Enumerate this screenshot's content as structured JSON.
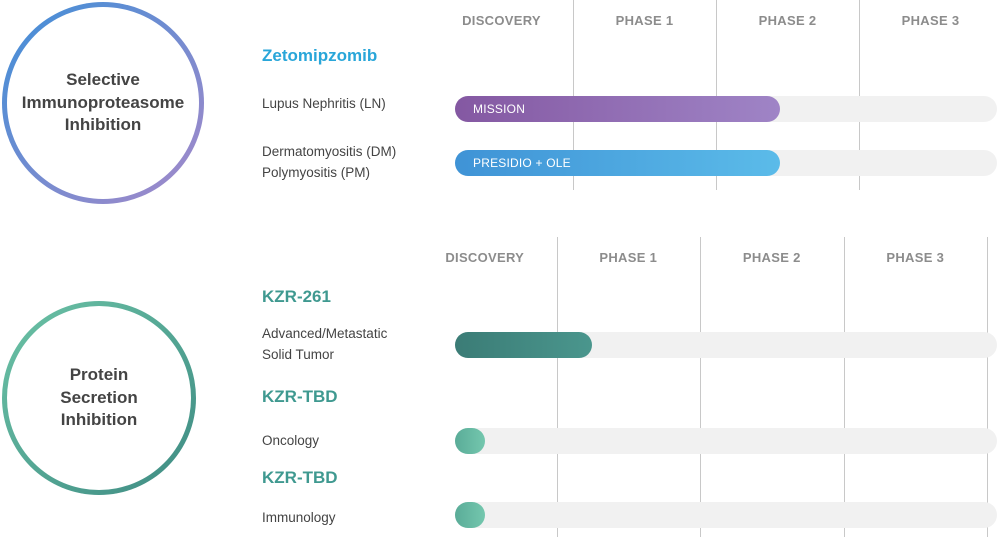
{
  "chart_data": [
    {
      "type": "bar",
      "orientation": "horizontal",
      "platform": "Selective\nImmunoproteasome\nInhibition",
      "platform_colors": [
        "#3f8fd8",
        "#a689c9"
      ],
      "categories": [
        "DISCOVERY",
        "PHASE 1",
        "PHASE 2",
        "PHASE 3"
      ],
      "xlim": [
        0,
        4
      ],
      "grid": true,
      "groups": [
        {
          "drug": "Zetomipzomib",
          "drug_color": "#29a6d9",
          "programs": [
            {
              "indication": "Lupus Nephritis (LN)",
              "label": "MISSION",
              "value": 2.45,
              "colors": [
                "#8458a2",
                "#9f84c6"
              ]
            },
            {
              "indication": "Dermatomyositis (DM)\nPolymyositis (PM)",
              "label": "PRESIDIO + OLE",
              "value": 2.45,
              "colors": [
                "#3f93d6",
                "#5bbbe9"
              ]
            }
          ]
        }
      ]
    },
    {
      "type": "bar",
      "orientation": "horizontal",
      "platform": "Protein\nSecretion\nInhibition",
      "platform_colors": [
        "#6cc3a6",
        "#3e8b83"
      ],
      "categories": [
        "DISCOVERY",
        "PHASE 1",
        "PHASE 2",
        "PHASE 3"
      ],
      "xlim": [
        0,
        4
      ],
      "grid": true,
      "groups": [
        {
          "drug": "KZR-261",
          "drug_color": "#3f9990",
          "programs": [
            {
              "indication": "Advanced/Metastatic\nSolid Tumor",
              "label": "",
              "value": 1.25,
              "colors": [
                "#3b7c76",
                "#4a968d"
              ]
            }
          ]
        },
        {
          "drug": "KZR-TBD",
          "drug_color": "#3f9990",
          "programs": [
            {
              "indication": "Oncology",
              "label": "",
              "value": 0.5,
              "colors": [
                "#5aac98",
                "#74c7ae"
              ]
            }
          ]
        },
        {
          "drug": "KZR-TBD",
          "drug_color": "#3f9990",
          "programs": [
            {
              "indication": "Immunology",
              "label": "",
              "value": 0.5,
              "colors": [
                "#5aac98",
                "#74c7ae"
              ]
            }
          ]
        }
      ]
    }
  ]
}
